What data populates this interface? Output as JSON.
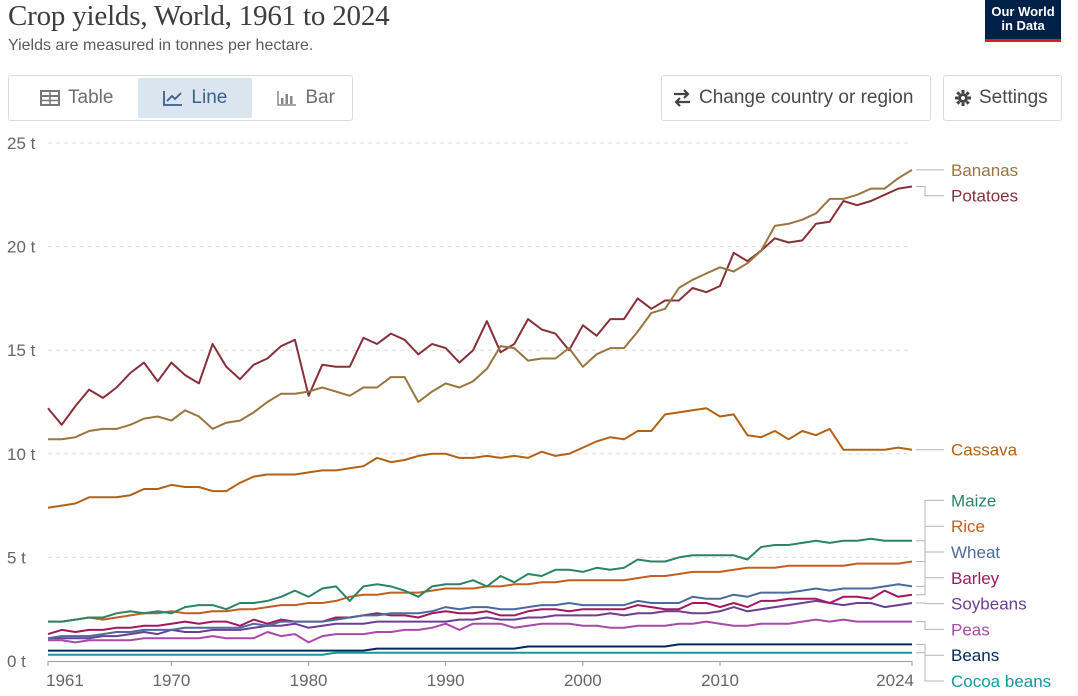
{
  "header": {
    "title": "Crop yields, World, 1961 to 2024",
    "subtitle": "Yields are measured in tonnes per hectare.",
    "logo_line1": "Our World",
    "logo_line2": "in Data"
  },
  "toolbar": {
    "tab_table": "Table",
    "tab_line": "Line",
    "tab_bar": "Bar",
    "active_tab": "Line",
    "change_region_label": "Change country or region",
    "settings_label": "Settings"
  },
  "chart_data": {
    "type": "line",
    "title": "Crop yields, World, 1961 to 2024",
    "subtitle": "Yields are measured in tonnes per hectare.",
    "xlabel": "",
    "ylabel": "",
    "xlim": [
      1961,
      2024
    ],
    "ylim": [
      0,
      25
    ],
    "x_ticks": [
      "1961",
      "1970",
      "1980",
      "1990",
      "2000",
      "2010",
      "2024"
    ],
    "y_ticks": [
      "0 t",
      "5 t",
      "10 t",
      "15 t",
      "20 t",
      "25 t"
    ],
    "grid": "horizontal dashed",
    "legend": "right, line-end labels",
    "x": [
      1961,
      1962,
      1963,
      1964,
      1965,
      1966,
      1967,
      1968,
      1969,
      1970,
      1971,
      1972,
      1973,
      1974,
      1975,
      1976,
      1977,
      1978,
      1979,
      1980,
      1981,
      1982,
      1983,
      1984,
      1985,
      1986,
      1987,
      1988,
      1989,
      1990,
      1991,
      1992,
      1993,
      1994,
      1995,
      1996,
      1997,
      1998,
      1999,
      2000,
      2001,
      2002,
      2003,
      2004,
      2005,
      2006,
      2007,
      2008,
      2009,
      2010,
      2011,
      2012,
      2013,
      2014,
      2015,
      2016,
      2017,
      2018,
      2019,
      2020,
      2021,
      2022,
      2023,
      2024
    ],
    "series": [
      {
        "name": "Bananas",
        "color": "#99753f",
        "values": [
          10.7,
          10.7,
          10.8,
          11.1,
          11.2,
          11.2,
          11.4,
          11.7,
          11.8,
          11.6,
          12.1,
          11.8,
          11.2,
          11.5,
          11.6,
          12.0,
          12.5,
          12.9,
          12.9,
          13.0,
          13.2,
          13.0,
          12.8,
          13.2,
          13.2,
          13.7,
          13.7,
          12.5,
          13.0,
          13.4,
          13.2,
          13.5,
          14.1,
          15.2,
          15.1,
          14.5,
          14.6,
          14.6,
          15.1,
          14.2,
          14.8,
          15.1,
          15.1,
          15.9,
          16.8,
          17.0,
          18.0,
          18.4,
          18.7,
          19.0,
          18.8,
          19.2,
          19.8,
          21.0,
          21.1,
          21.3,
          21.6,
          22.3,
          22.3,
          22.5,
          22.8,
          22.8,
          23.3,
          23.7
        ]
      },
      {
        "name": "Potatoes",
        "color": "#883039",
        "values": [
          12.2,
          11.4,
          12.3,
          13.1,
          12.7,
          13.2,
          13.9,
          14.4,
          13.5,
          14.4,
          13.8,
          13.4,
          15.3,
          14.2,
          13.6,
          14.3,
          14.6,
          15.2,
          15.5,
          12.8,
          14.3,
          14.2,
          14.2,
          15.6,
          15.3,
          15.8,
          15.5,
          14.8,
          15.3,
          15.1,
          14.4,
          15.0,
          16.4,
          14.9,
          15.3,
          16.5,
          16.0,
          15.8,
          15.0,
          16.2,
          15.7,
          16.5,
          16.5,
          17.5,
          17.0,
          17.4,
          17.4,
          18.0,
          17.8,
          18.1,
          19.7,
          19.3,
          19.8,
          20.4,
          20.2,
          20.3,
          21.1,
          21.2,
          22.2,
          22.0,
          22.2,
          22.5,
          22.8,
          22.9
        ]
      },
      {
        "name": "Cassava",
        "color": "#b16214",
        "values": [
          7.4,
          7.5,
          7.6,
          7.9,
          7.9,
          7.9,
          8.0,
          8.3,
          8.3,
          8.5,
          8.4,
          8.4,
          8.2,
          8.2,
          8.6,
          8.9,
          9.0,
          9.0,
          9.0,
          9.1,
          9.2,
          9.2,
          9.3,
          9.4,
          9.8,
          9.6,
          9.7,
          9.9,
          10.0,
          10.0,
          9.8,
          9.8,
          9.9,
          9.8,
          9.9,
          9.8,
          10.1,
          9.9,
          10.0,
          10.3,
          10.6,
          10.8,
          10.7,
          11.1,
          11.1,
          11.9,
          12.0,
          12.1,
          12.2,
          11.8,
          11.9,
          10.9,
          10.8,
          11.1,
          10.7,
          11.1,
          10.9,
          11.2,
          10.2,
          10.2,
          10.2,
          10.2,
          10.3,
          10.2
        ]
      },
      {
        "name": "Maize",
        "color": "#2c8465",
        "values": [
          1.9,
          1.9,
          2.0,
          2.1,
          2.1,
          2.3,
          2.4,
          2.3,
          2.4,
          2.3,
          2.6,
          2.7,
          2.7,
          2.5,
          2.8,
          2.8,
          2.9,
          3.1,
          3.4,
          3.1,
          3.5,
          3.6,
          2.9,
          3.6,
          3.7,
          3.6,
          3.4,
          3.1,
          3.6,
          3.7,
          3.7,
          3.9,
          3.6,
          4.1,
          3.8,
          4.2,
          4.1,
          4.4,
          4.4,
          4.3,
          4.5,
          4.4,
          4.5,
          4.9,
          4.8,
          4.8,
          5.0,
          5.1,
          5.1,
          5.1,
          5.1,
          4.9,
          5.5,
          5.6,
          5.6,
          5.7,
          5.8,
          5.7,
          5.8,
          5.8,
          5.9,
          5.8,
          5.8,
          5.8
        ]
      },
      {
        "name": "Rice",
        "color": "#c15f22",
        "values": [
          1.9,
          1.9,
          2.0,
          2.1,
          2.0,
          2.1,
          2.2,
          2.3,
          2.3,
          2.4,
          2.3,
          2.3,
          2.4,
          2.4,
          2.5,
          2.5,
          2.6,
          2.7,
          2.7,
          2.8,
          2.8,
          2.9,
          3.1,
          3.2,
          3.2,
          3.3,
          3.3,
          3.3,
          3.4,
          3.5,
          3.5,
          3.5,
          3.6,
          3.6,
          3.7,
          3.7,
          3.8,
          3.8,
          3.9,
          3.9,
          3.9,
          3.9,
          3.9,
          4.0,
          4.1,
          4.1,
          4.2,
          4.3,
          4.3,
          4.3,
          4.4,
          4.5,
          4.5,
          4.5,
          4.6,
          4.6,
          4.6,
          4.6,
          4.6,
          4.7,
          4.7,
          4.7,
          4.7,
          4.8
        ]
      },
      {
        "name": "Wheat",
        "color": "#4c6a9c",
        "values": [
          1.1,
          1.2,
          1.2,
          1.2,
          1.3,
          1.4,
          1.4,
          1.5,
          1.5,
          1.5,
          1.6,
          1.6,
          1.6,
          1.6,
          1.6,
          1.8,
          1.7,
          1.9,
          1.9,
          1.9,
          1.9,
          2.0,
          2.1,
          2.2,
          2.2,
          2.3,
          2.3,
          2.3,
          2.4,
          2.6,
          2.5,
          2.6,
          2.6,
          2.5,
          2.5,
          2.6,
          2.7,
          2.7,
          2.8,
          2.7,
          2.7,
          2.7,
          2.7,
          2.9,
          2.8,
          2.8,
          2.8,
          3.1,
          3.0,
          3.0,
          3.2,
          3.1,
          3.3,
          3.3,
          3.3,
          3.4,
          3.5,
          3.4,
          3.5,
          3.5,
          3.5,
          3.6,
          3.7,
          3.6
        ]
      },
      {
        "name": "Barley",
        "color": "#a2185f",
        "values": [
          1.3,
          1.5,
          1.4,
          1.5,
          1.5,
          1.6,
          1.6,
          1.7,
          1.7,
          1.8,
          1.9,
          1.8,
          1.9,
          1.9,
          1.7,
          2.0,
          1.8,
          2.0,
          1.9,
          1.9,
          1.9,
          2.1,
          2.1,
          2.2,
          2.3,
          2.2,
          2.2,
          2.1,
          2.3,
          2.4,
          2.3,
          2.3,
          2.4,
          2.2,
          2.2,
          2.4,
          2.5,
          2.5,
          2.4,
          2.5,
          2.5,
          2.5,
          2.5,
          2.7,
          2.6,
          2.5,
          2.5,
          2.8,
          2.8,
          2.6,
          2.8,
          2.6,
          2.9,
          2.9,
          3.0,
          3.0,
          3.0,
          2.8,
          3.1,
          3.1,
          3.0,
          3.4,
          3.1,
          3.2
        ]
      },
      {
        "name": "Soybeans",
        "color": "#6d3e91",
        "values": [
          1.1,
          1.1,
          1.1,
          1.1,
          1.2,
          1.2,
          1.3,
          1.4,
          1.3,
          1.5,
          1.4,
          1.4,
          1.5,
          1.5,
          1.5,
          1.6,
          1.7,
          1.7,
          1.8,
          1.6,
          1.7,
          1.8,
          1.8,
          1.8,
          1.9,
          1.9,
          1.9,
          1.9,
          1.9,
          1.9,
          2.0,
          2.0,
          2.1,
          2.0,
          2.0,
          2.1,
          2.1,
          2.2,
          2.2,
          2.2,
          2.2,
          2.3,
          2.2,
          2.3,
          2.3,
          2.4,
          2.4,
          2.3,
          2.3,
          2.4,
          2.6,
          2.4,
          2.5,
          2.6,
          2.7,
          2.8,
          2.9,
          2.8,
          2.7,
          2.8,
          2.8,
          2.6,
          2.7,
          2.8
        ]
      },
      {
        "name": "Peas",
        "color": "#a84aa8",
        "values": [
          1.0,
          1.0,
          0.9,
          1.0,
          1.0,
          1.0,
          1.0,
          1.1,
          1.1,
          1.1,
          1.1,
          1.1,
          1.2,
          1.1,
          1.1,
          1.1,
          1.4,
          1.2,
          1.3,
          0.9,
          1.2,
          1.3,
          1.3,
          1.3,
          1.4,
          1.4,
          1.5,
          1.5,
          1.6,
          1.8,
          1.5,
          1.8,
          1.8,
          1.8,
          1.6,
          1.7,
          1.8,
          1.8,
          1.8,
          1.7,
          1.7,
          1.6,
          1.6,
          1.7,
          1.7,
          1.7,
          1.8,
          1.8,
          1.9,
          1.8,
          1.7,
          1.7,
          1.8,
          1.8,
          1.8,
          1.9,
          2.0,
          1.9,
          2.0,
          1.9,
          1.9,
          1.9,
          1.9,
          1.9
        ]
      },
      {
        "name": "Beans",
        "color": "#00295b",
        "values": [
          0.5,
          0.5,
          0.5,
          0.5,
          0.5,
          0.5,
          0.5,
          0.5,
          0.5,
          0.5,
          0.5,
          0.5,
          0.5,
          0.5,
          0.5,
          0.5,
          0.5,
          0.5,
          0.5,
          0.5,
          0.5,
          0.5,
          0.5,
          0.5,
          0.6,
          0.6,
          0.6,
          0.6,
          0.6,
          0.6,
          0.6,
          0.6,
          0.6,
          0.6,
          0.6,
          0.7,
          0.7,
          0.7,
          0.7,
          0.7,
          0.7,
          0.7,
          0.7,
          0.7,
          0.7,
          0.7,
          0.8,
          0.8,
          0.8,
          0.8,
          0.8,
          0.8,
          0.8,
          0.8,
          0.8,
          0.8,
          0.8,
          0.8,
          0.8,
          0.8,
          0.8,
          0.8,
          0.8,
          0.8
        ]
      },
      {
        "name": "Cocoa beans",
        "color": "#18989e",
        "values": [
          0.3,
          0.3,
          0.3,
          0.3,
          0.3,
          0.3,
          0.3,
          0.3,
          0.3,
          0.3,
          0.3,
          0.3,
          0.3,
          0.3,
          0.3,
          0.3,
          0.3,
          0.3,
          0.3,
          0.3,
          0.3,
          0.4,
          0.4,
          0.4,
          0.4,
          0.4,
          0.4,
          0.4,
          0.4,
          0.4,
          0.4,
          0.4,
          0.4,
          0.4,
          0.4,
          0.4,
          0.4,
          0.4,
          0.4,
          0.4,
          0.4,
          0.4,
          0.4,
          0.4,
          0.4,
          0.4,
          0.4,
          0.4,
          0.4,
          0.4,
          0.4,
          0.4,
          0.4,
          0.4,
          0.4,
          0.4,
          0.4,
          0.4,
          0.4,
          0.4,
          0.4,
          0.4,
          0.4,
          0.4
        ]
      }
    ]
  }
}
